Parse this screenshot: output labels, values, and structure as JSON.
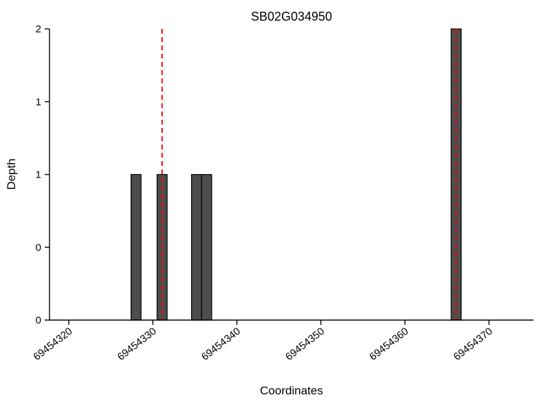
{
  "chart_data": {
    "type": "bar",
    "title": "SB02G034950",
    "xlabel": "Coordinates",
    "ylabel": "Depth",
    "xlim": [
      69454317.7,
      69454375.3
    ],
    "ylim": [
      0,
      2
    ],
    "xticks": {
      "values": [
        69454320,
        69454330,
        69454340,
        69454350,
        69454360,
        69454370
      ],
      "labels": [
        "69454320",
        "69454330",
        "69454340",
        "69454350",
        "69454360",
        "69454370"
      ],
      "rotation": -38
    },
    "yticks": {
      "values": [
        0,
        0.5,
        1,
        1.5,
        2
      ],
      "labels": [
        "0",
        "0",
        "1",
        "1",
        "2"
      ]
    },
    "bars": [
      {
        "x": 69454328.0,
        "depth": 1
      },
      {
        "x": 69454331.1,
        "depth": 1
      },
      {
        "x": 69454335.2,
        "depth": 1
      },
      {
        "x": 69454336.4,
        "depth": 1
      },
      {
        "x": 69454366.1,
        "depth": 2
      }
    ],
    "bar_width": 1.2,
    "vlines": {
      "x": [
        69454331.1,
        69454366.1
      ],
      "style": "dashed",
      "color": "#ff0000"
    },
    "colors": {
      "bar_fill": "#4d4d4d",
      "bar_edge": "#000000",
      "axis": "#000000",
      "background": "#ffffff"
    },
    "grid": false,
    "legend": null
  }
}
